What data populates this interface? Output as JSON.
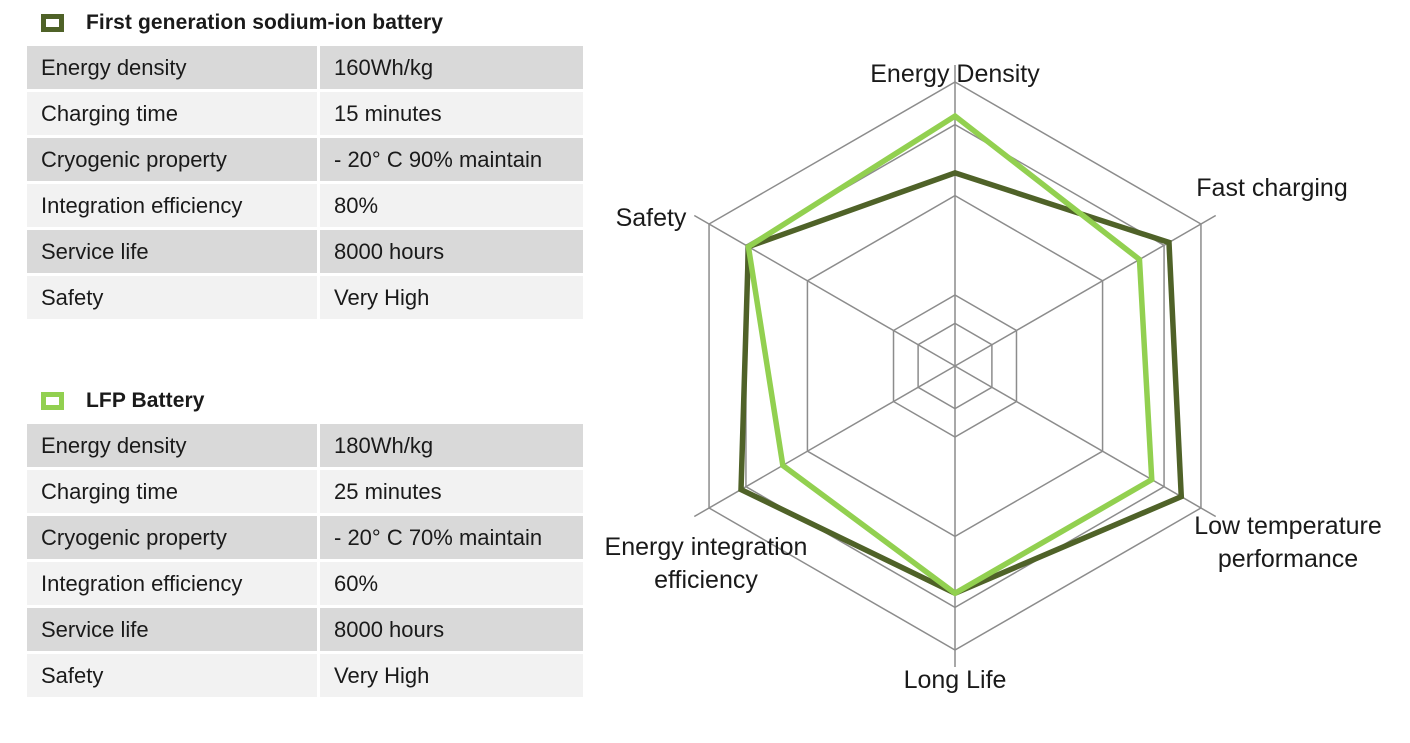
{
  "tables": [
    {
      "legend": "First generation sodium-ion battery",
      "color": "#4f6228",
      "rows": [
        {
          "label": "Energy density",
          "value": "160Wh/kg"
        },
        {
          "label": "Charging time",
          "value": "15 minutes"
        },
        {
          "label": "Cryogenic property",
          "value": "- 20° C 90% maintain"
        },
        {
          "label": "Integration efficiency",
          "value": "80%"
        },
        {
          "label": "Service life",
          "value": "8000 hours"
        },
        {
          "label": "Safety",
          "value": "Very High"
        }
      ]
    },
    {
      "legend": "LFP Battery",
      "color": "#92d050",
      "rows": [
        {
          "label": "Energy density",
          "value": "180Wh/kg"
        },
        {
          "label": "Charging time",
          "value": "25 minutes"
        },
        {
          "label": "Cryogenic property",
          "value": "- 20° C 70% maintain"
        },
        {
          "label": "Integration efficiency",
          "value": "60%"
        },
        {
          "label": "Service life",
          "value": "8000 hours"
        },
        {
          "label": "Safety",
          "value": "Very High"
        }
      ]
    }
  ],
  "chart_data": {
    "type": "radar",
    "axes": [
      "Energy Density",
      "Fast charging",
      "Low temperature performance",
      "Long Life",
      "Energy integration efficiency",
      "Safety"
    ],
    "axis_label_lines": [
      [
        "Energy Density"
      ],
      [
        "Fast charging"
      ],
      [
        "Low temperature",
        "performance"
      ],
      [
        "Long Life"
      ],
      [
        "Energy integration",
        "efficiency"
      ],
      [
        "Safety"
      ]
    ],
    "scale_max": 1.0,
    "rings": [
      0.15,
      0.25,
      0.6,
      0.85,
      1.0
    ],
    "series": [
      {
        "name": "First generation sodium-ion battery",
        "color": "#4f6228",
        "values": [
          0.68,
          0.87,
          0.92,
          0.8,
          0.87,
          0.84
        ]
      },
      {
        "name": "LFP Battery",
        "color": "#92d050",
        "values": [
          0.88,
          0.75,
          0.8,
          0.8,
          0.7,
          0.84
        ]
      }
    ],
    "grid": true,
    "legend": "left"
  }
}
